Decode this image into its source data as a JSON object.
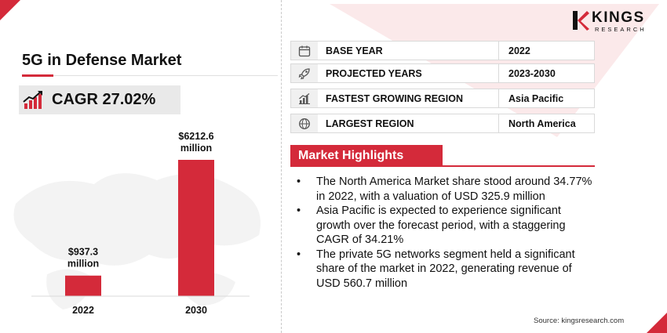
{
  "brand": {
    "name": "KINGS",
    "sub": "RESEARCH",
    "accent": "#d42a3a"
  },
  "title": "5G in Defense Market",
  "cagr": {
    "label": "CAGR 27.02%",
    "icon": "trend-up-chart-icon"
  },
  "chart_data": {
    "type": "bar",
    "categories": [
      "2022",
      "2030"
    ],
    "values": [
      937.3,
      6212.6
    ],
    "data_labels": [
      [
        "$937.3",
        "million"
      ],
      [
        "$6212.6",
        "million"
      ]
    ],
    "unit": "USD million",
    "bar_color": "#d42a3a",
    "ylim": [
      0,
      6212.6
    ],
    "title": "",
    "xlabel": "",
    "ylabel": ""
  },
  "info_table": [
    {
      "icon": "calendar-icon",
      "label": "BASE YEAR",
      "value": "2022"
    },
    {
      "icon": "rocket-icon",
      "label": "PROJECTED YEARS",
      "value": "2023-2030"
    },
    {
      "icon": "growth-chart-icon",
      "label": "FASTEST GROWING REGION",
      "value": "Asia Pacific"
    },
    {
      "icon": "globe-icon",
      "label": "LARGEST REGION",
      "value": "North America"
    }
  ],
  "highlights": {
    "heading": "Market Highlights",
    "items": [
      {
        "line1": "The North America Market share stood around 34.77%",
        "line2": "in 2022, with a valuation of USD 325.9 million"
      },
      {
        "line1": "Asia Pacific is expected to experience significant",
        "line2": "growth over the forecast period, with a staggering",
        "line3": "CAGR of 34.21%"
      },
      {
        "line1": "The private 5G networks segment held a significant",
        "line2": "share of the market in 2022, generating revenue of",
        "line3": "USD 560.7 million"
      }
    ]
  },
  "source": "Source: kingsresearch.com"
}
